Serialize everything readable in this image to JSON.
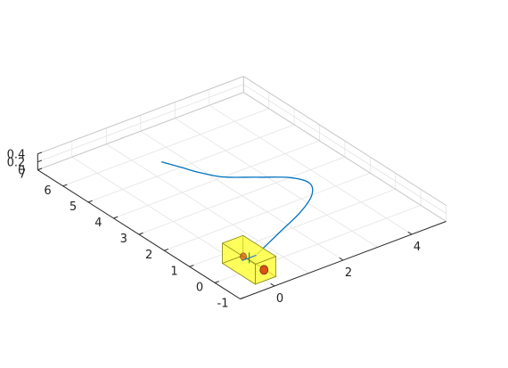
{
  "chart_data": {
    "type": "line",
    "view": "3d",
    "title": "",
    "xlabel": "",
    "ylabel": "",
    "zlabel": "",
    "grid": true,
    "xlim": [
      -1,
      5
    ],
    "ylim": [
      -1,
      7
    ],
    "zlim": [
      0,
      0.4
    ],
    "x_ticks": [
      0,
      2,
      4
    ],
    "y_ticks": [
      -1,
      0,
      1,
      2,
      3,
      4,
      5,
      6,
      7
    ],
    "z_ticks": [
      0,
      0.2,
      0.4
    ],
    "x_tick_labels": [
      "0",
      "2",
      "4"
    ],
    "y_tick_labels": [
      "-1",
      "0",
      "1",
      "2",
      "3",
      "4",
      "5",
      "6",
      "7"
    ],
    "z_tick_labels": [
      "0",
      "0.2",
      "0.4"
    ],
    "series": [
      {
        "color": "#0072BD",
        "x": [
          0.6,
          1.6,
          2.6,
          3.3,
          3.6,
          3.4,
          2.8,
          2.2,
          1.9,
          1.7,
          1.5
        ],
        "y": [
          0.5,
          1.0,
          1.5,
          2.0,
          2.5,
          3.0,
          3.5,
          4.0,
          4.5,
          5.0,
          5.5
        ],
        "z": [
          0,
          0,
          0,
          0,
          0,
          0,
          0,
          0,
          0,
          0,
          0
        ]
      }
    ],
    "vehicle": {
      "x": 0,
      "y": 0,
      "length": 1.3,
      "width": 0.6,
      "height": 0.5,
      "body_color": "#FFFF33",
      "edge_color": "#909020",
      "wheel_color": "#D95319"
    }
  }
}
